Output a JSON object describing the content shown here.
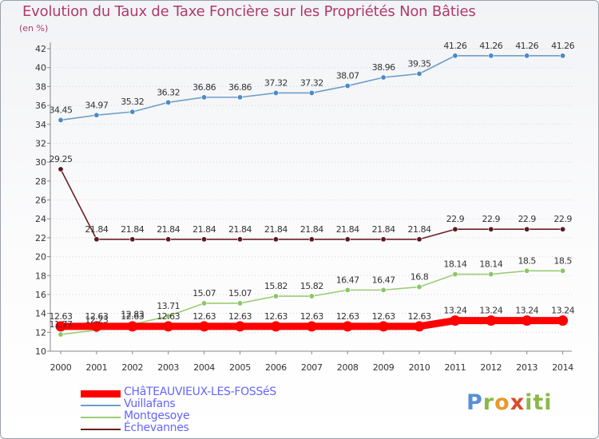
{
  "chart_data": {
    "type": "line",
    "title": "Evolution du Taux de Taxe Foncière sur les Propriétés Non Bâties",
    "ylabel": "(en %)",
    "xlabel": "",
    "ylim": [
      10,
      42
    ],
    "yticks": [
      10,
      12,
      14,
      16,
      18,
      20,
      22,
      24,
      26,
      28,
      30,
      32,
      34,
      36,
      38,
      40,
      42
    ],
    "categories": [
      "2000",
      "2001",
      "2002",
      "2003",
      "2004",
      "2005",
      "2006",
      "2007",
      "2008",
      "2009",
      "2010",
      "2011",
      "2012",
      "2013",
      "2014"
    ],
    "series": [
      {
        "name": "Vuillafans",
        "color": "#6d9ec9",
        "marker": "#4a8ac8",
        "values": [
          34.45,
          34.97,
          35.32,
          36.32,
          36.86,
          36.86,
          37.32,
          37.32,
          38.07,
          38.96,
          39.35,
          41.26,
          41.26,
          41.26,
          41.26
        ],
        "labels": [
          "34.45",
          "34.97",
          "35.32",
          "36.32",
          "36.86",
          "36.86",
          "37.32",
          "37.32",
          "38.07",
          "38.96",
          "39.35",
          "41.26",
          "41.26",
          "41.26",
          "41.26"
        ]
      },
      {
        "name": "Échevannes",
        "color": "#6b1f23",
        "marker": "#5a1a1e",
        "values": [
          29.25,
          21.84,
          21.84,
          21.84,
          21.84,
          21.84,
          21.84,
          21.84,
          21.84,
          21.84,
          21.84,
          22.9,
          22.9,
          22.9,
          22.9
        ],
        "labels": [
          "29.25",
          "21.84",
          "21.84",
          "21.84",
          "21.84",
          "21.84",
          "21.84",
          "21.84",
          "21.84",
          "21.84",
          "21.84",
          "22.9",
          "22.9",
          "22.9",
          "22.9"
        ]
      },
      {
        "name": "Montgesoye",
        "color": "#9ccc74",
        "marker": "#8cc46a",
        "values": [
          11.77,
          12.23,
          12.83,
          13.71,
          15.07,
          15.07,
          15.82,
          15.82,
          16.47,
          16.47,
          16.8,
          18.14,
          18.14,
          18.5,
          18.5
        ],
        "labels": [
          "11.77",
          "12.23",
          "12.83",
          "13.71",
          "15.07",
          "15.07",
          "15.82",
          "15.82",
          "16.47",
          "16.47",
          "16.8",
          "18.14",
          "18.14",
          "18.5",
          "18.5"
        ]
      },
      {
        "name": "CHâTEAUVIEUX-LES-FOSSéS",
        "color": "#ff0000",
        "marker": "#ff0000",
        "values": [
          12.63,
          12.63,
          12.63,
          12.63,
          12.63,
          12.63,
          12.63,
          12.63,
          12.63,
          12.63,
          12.63,
          13.24,
          13.24,
          13.24,
          13.24
        ],
        "labels": [
          "12.63",
          "12.63",
          "12.63",
          "12.63",
          "12.63",
          "12.63",
          "12.63",
          "12.63",
          "12.63",
          "12.63",
          "12.63",
          "13.24",
          "13.24",
          "13.24",
          "13.24"
        ]
      }
    ]
  },
  "legend": [
    {
      "label": "CHâTEAUVIEUX-LES-FOSSéS",
      "color": "#ff0000"
    },
    {
      "label": "Vuillafans",
      "color": "#6d9ec9"
    },
    {
      "label": "Montgesoye",
      "color": "#9ccc74"
    },
    {
      "label": "Échevannes",
      "color": "#6b1f23"
    }
  ],
  "logo": {
    "p": "P",
    "r": "r",
    "o": "o",
    "x": "x",
    "i": "iti"
  }
}
